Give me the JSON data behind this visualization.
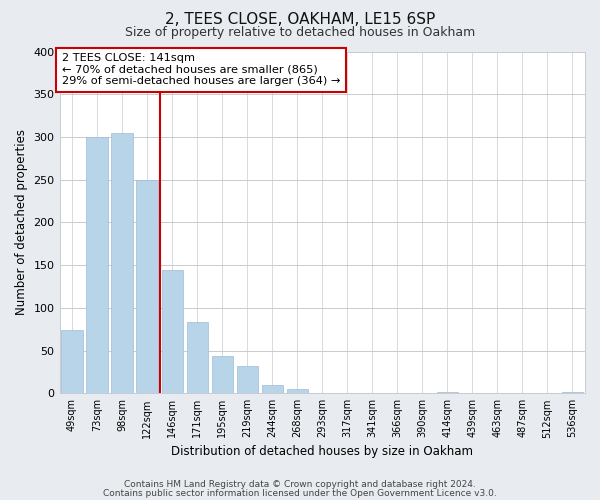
{
  "title": "2, TEES CLOSE, OAKHAM, LE15 6SP",
  "subtitle": "Size of property relative to detached houses in Oakham",
  "xlabel": "Distribution of detached houses by size in Oakham",
  "ylabel": "Number of detached properties",
  "bar_labels": [
    "49sqm",
    "73sqm",
    "98sqm",
    "122sqm",
    "146sqm",
    "171sqm",
    "195sqm",
    "219sqm",
    "244sqm",
    "268sqm",
    "293sqm",
    "317sqm",
    "341sqm",
    "366sqm",
    "390sqm",
    "414sqm",
    "439sqm",
    "463sqm",
    "487sqm",
    "512sqm",
    "536sqm"
  ],
  "bar_values": [
    74,
    300,
    305,
    250,
    144,
    83,
    44,
    32,
    10,
    5,
    0,
    0,
    0,
    0,
    0,
    2,
    0,
    0,
    0,
    0,
    2
  ],
  "bar_color": "#b8d4e8",
  "bar_edge_color": "#a0bcd8",
  "vline_x_index": 4,
  "vline_color": "#cc0000",
  "annotation_text": "2 TEES CLOSE: 141sqm\n← 70% of detached houses are smaller (865)\n29% of semi-detached houses are larger (364) →",
  "annotation_box_color": "#ffffff",
  "annotation_box_edge": "#cc0000",
  "ylim": [
    0,
    400
  ],
  "yticks": [
    0,
    50,
    100,
    150,
    200,
    250,
    300,
    350,
    400
  ],
  "footer_line1": "Contains HM Land Registry data © Crown copyright and database right 2024.",
  "footer_line2": "Contains public sector information licensed under the Open Government Licence v3.0.",
  "background_color": "#e8ecf0",
  "plot_background_color": "#ffffff",
  "grid_color": "#c8ccd0"
}
